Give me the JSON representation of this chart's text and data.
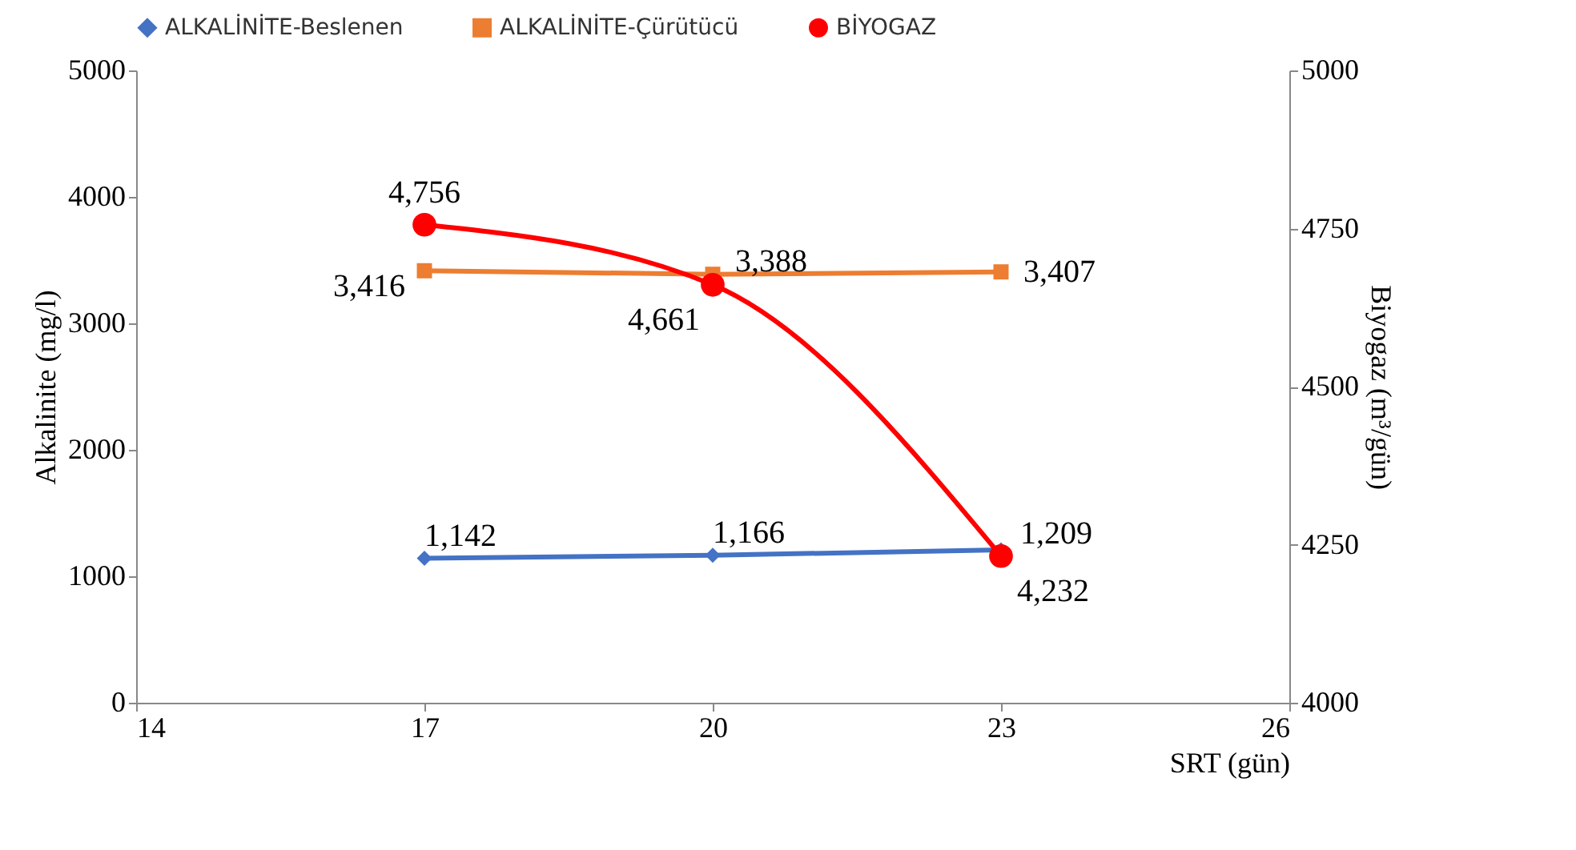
{
  "chart_data": {
    "type": "line",
    "xlabel": "SRT (gün)",
    "ylabel": "Alkalinite (mg/l)",
    "y2label": "Biyogaz (m³/gün)",
    "x": [
      17,
      20,
      23
    ],
    "series": [
      {
        "name": "ALKALİNİTE-Beslenen",
        "color": "#4472c4",
        "marker": "diamond",
        "values": [
          1142,
          1166,
          1209
        ],
        "value_labels": [
          "1,142",
          "1,166",
          "1,209"
        ]
      },
      {
        "name": "ALKALİNİTE-Çürütücü",
        "color": "#ed7d31",
        "marker": "square",
        "values": [
          3416,
          3388,
          3407
        ],
        "value_labels": [
          "3,416",
          "3,388",
          "3,407"
        ]
      },
      {
        "name": "BİYOGAZ",
        "color": "#ff0000",
        "marker": "circle",
        "axis": "y2",
        "values": [
          4756,
          4661,
          4232
        ],
        "value_labels": [
          "4,756",
          "4,661",
          "4,232"
        ]
      }
    ],
    "xlim": [
      14,
      26
    ],
    "xticks": [
      14,
      17,
      20,
      23,
      26
    ],
    "ylim": [
      0,
      5000
    ],
    "yticks": [
      0,
      1000,
      2000,
      3000,
      4000,
      5000
    ],
    "y2lim": [
      4000,
      5000
    ],
    "y2ticks": [
      4000,
      4250,
      4500,
      4750,
      5000
    ],
    "legend": "top",
    "grid": false
  }
}
